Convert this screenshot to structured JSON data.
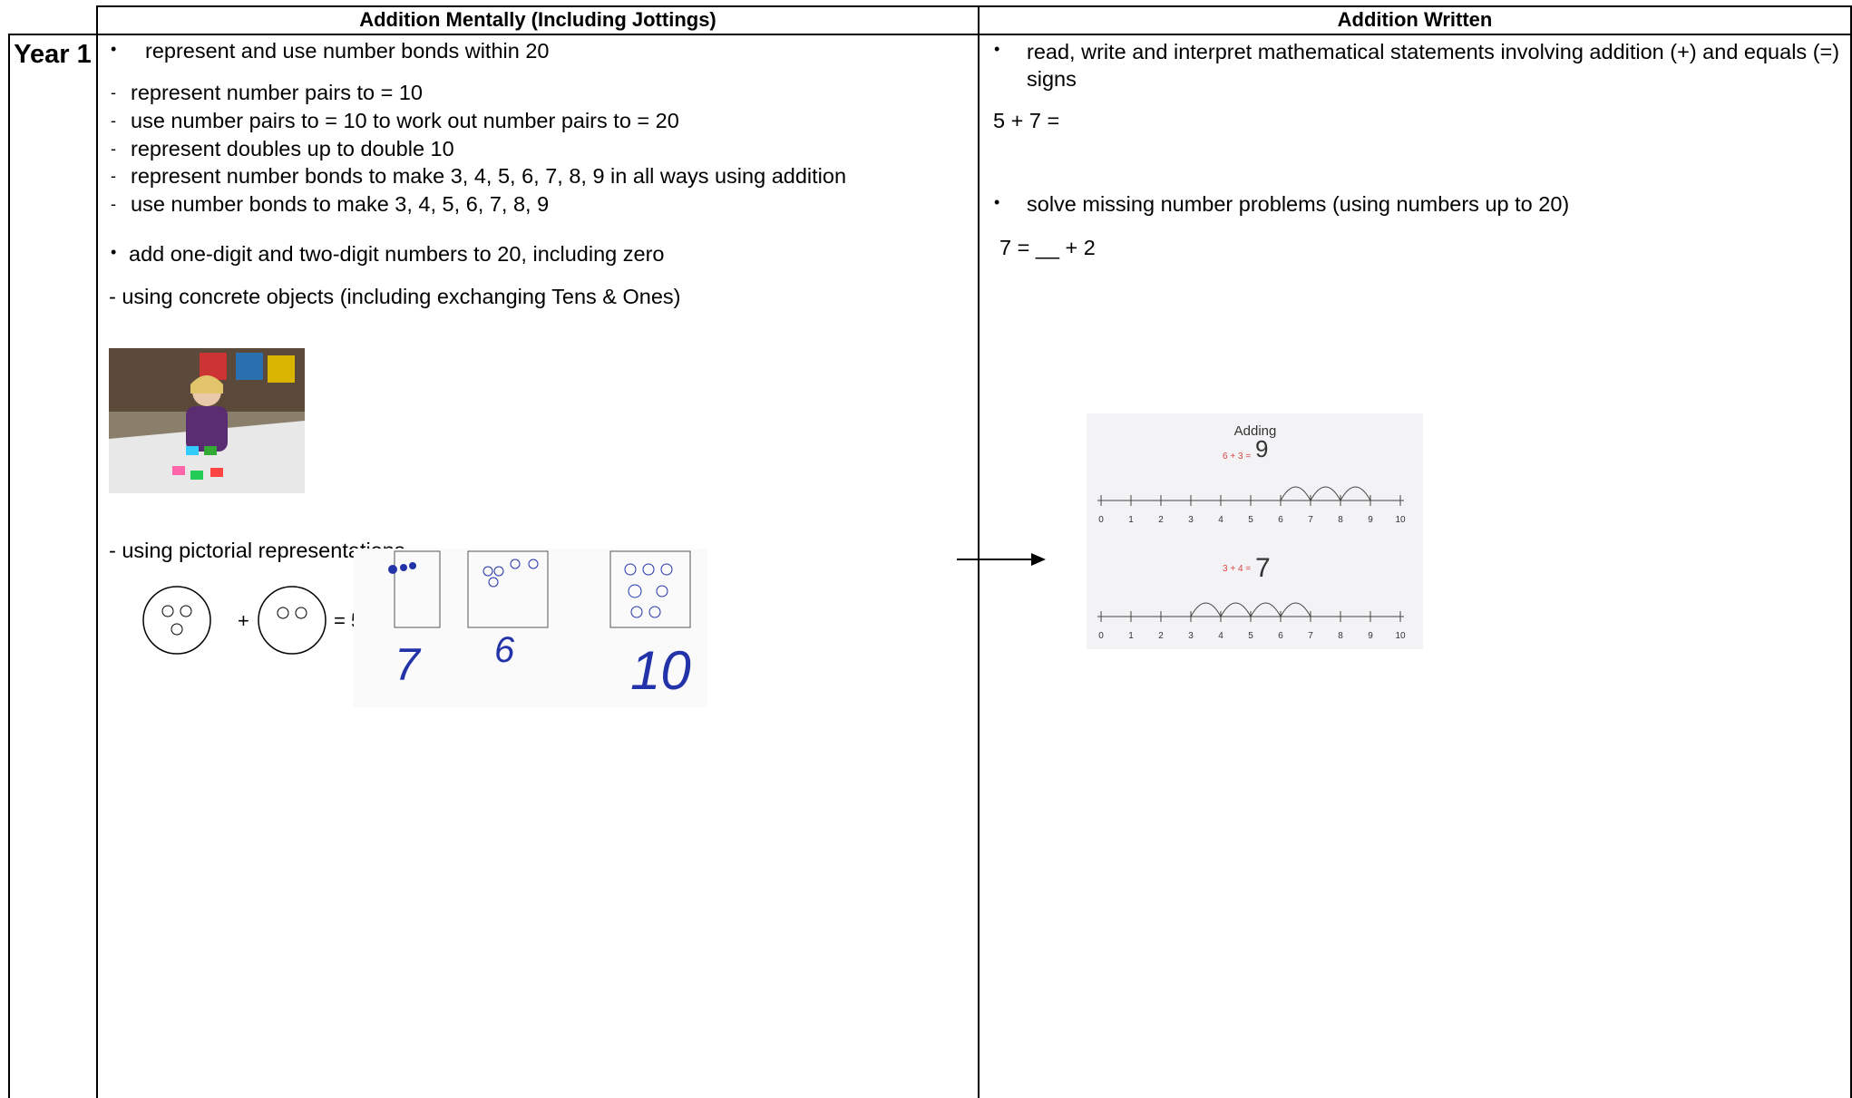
{
  "table": {
    "headers": [
      "Addition Mentally (Including Jottings)",
      "Addition Written"
    ],
    "rows": [
      {
        "label": "Year 1",
        "mental": {
          "bullet1": "represent and use number bonds within 20",
          "subitems": [
            "represent number pairs to = 10",
            "use number pairs to = 10 to work out number pairs to = 20",
            "represent doubles up to double 10",
            "represent number bonds to make 3, 4, 5, 6, 7, 8, 9 in all ways using addition",
            "use number bonds to make 3, 4, 5, 6, 7, 8, 9"
          ],
          "bullet2": "add one-digit and two-digit numbers to 20, including zero",
          "concrete": "- using concrete objects (including exchanging Tens & Ones)",
          "pictorial": "- using pictorial representations",
          "drawing": {
            "plus": "+",
            "equals": "= 5",
            "handwritten": [
              "7",
              "6",
              "10"
            ]
          }
        },
        "written": {
          "bullet1": "read, write and interpret mathematical statements involving addition (+) and equals (=) signs",
          "example1": "5 + 7 =",
          "bullet2": "solve missing number problems (using numbers up to 20)",
          "example2": "7 = __ + 2",
          "number_line": {
            "title": "Adding",
            "sum1": "6 + 3 =",
            "answer1": "9",
            "sum2": "3 + 4 =",
            "answer2": "7",
            "labels": [
              "0",
              "1",
              "2",
              "3",
              "4",
              "5",
              "6",
              "7",
              "8",
              "9",
              "10"
            ]
          }
        }
      }
    ]
  }
}
